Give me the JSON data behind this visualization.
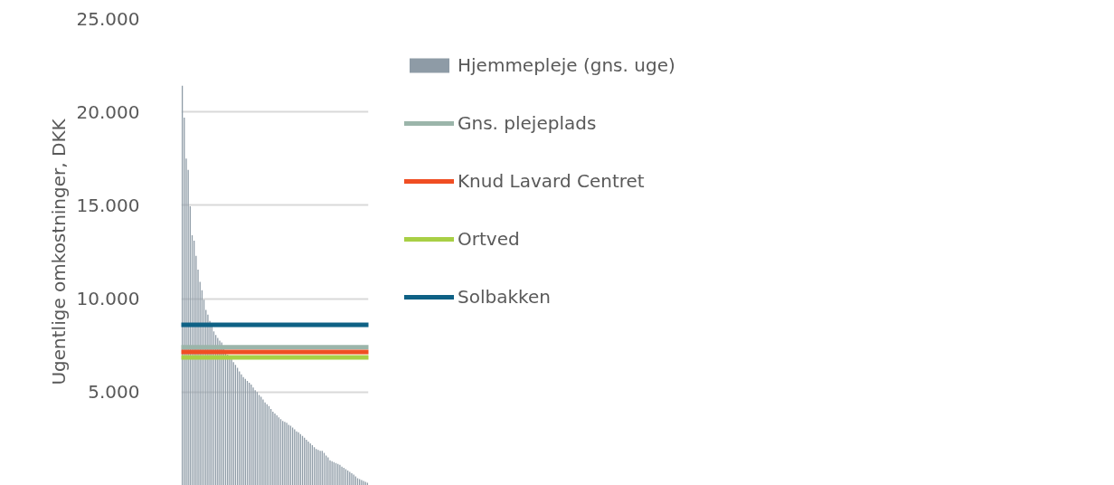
{
  "chart_data": {
    "type": "bar",
    "ylabel": "Ugentlige omkostninger, DKK",
    "categories": [
      null,
      null,
      null,
      null,
      null,
      null,
      null,
      null,
      null,
      null,
      null,
      null,
      null,
      null,
      null,
      null,
      null,
      null,
      null,
      null,
      null,
      null,
      null,
      null,
      null,
      null,
      null,
      null,
      null,
      null,
      null,
      null,
      null,
      null,
      null,
      null,
      null,
      null,
      null,
      null,
      null,
      null,
      null,
      null,
      null,
      null,
      null,
      null,
      null,
      null,
      null,
      null,
      null,
      null,
      null,
      null,
      null,
      null,
      null,
      null,
      null,
      null,
      null,
      null,
      null,
      null,
      null,
      null,
      null,
      null,
      null,
      null,
      null,
      null,
      null,
      null,
      null,
      null,
      null,
      null,
      null,
      null,
      null,
      null,
      null,
      null,
      null,
      null,
      null,
      null,
      null,
      null,
      null,
      null,
      null
    ],
    "series": [
      {
        "name": "Hjemmepleje (gns. uge)",
        "color": "#8e9ba6",
        "values": [
          21400,
          19700,
          17500,
          16900,
          14950,
          13400,
          13100,
          12300,
          11550,
          10900,
          10450,
          9950,
          9400,
          9150,
          8800,
          8550,
          8250,
          8050,
          7900,
          7750,
          7650,
          7400,
          7200,
          7000,
          6900,
          6800,
          6600,
          6450,
          6300,
          6100,
          5950,
          5800,
          5700,
          5600,
          5500,
          5400,
          5250,
          5100,
          5000,
          4850,
          4750,
          4600,
          4450,
          4350,
          4250,
          4100,
          3950,
          3850,
          3750,
          3650,
          3550,
          3450,
          3400,
          3350,
          3250,
          3200,
          3100,
          3000,
          2900,
          2850,
          2750,
          2650,
          2550,
          2450,
          2350,
          2250,
          2150,
          2050,
          1950,
          1900,
          1850,
          1850,
          1750,
          1600,
          1500,
          1350,
          1300,
          1250,
          1200,
          1150,
          1100,
          1000,
          950,
          870,
          800,
          730,
          650,
          580,
          480,
          390,
          340,
          290,
          240,
          190,
          150
        ]
      }
    ],
    "ref_lines": [
      {
        "axis": "y",
        "value": 7400,
        "label": "Gns. plejeplads",
        "color": "#9bb5aa"
      },
      {
        "axis": "y",
        "value": 7150,
        "label": "Knud Lavard Centret",
        "color": "#f04e23"
      },
      {
        "axis": "y",
        "value": 6850,
        "label": "Ortved",
        "color": "#a8cf45"
      },
      {
        "axis": "y",
        "value": 8600,
        "label": "Solbakken",
        "color": "#0e6185"
      }
    ],
    "ylim": [
      0,
      25000
    ],
    "yticks": [
      {
        "value": 5000,
        "label": "5.000"
      },
      {
        "value": 10000,
        "label": "10.000"
      },
      {
        "value": 15000,
        "label": "15.000"
      },
      {
        "value": 20000,
        "label": "20.000"
      },
      {
        "value": 25000,
        "label": "25.000"
      }
    ],
    "grid": "y",
    "legend": "right",
    "tick_labels": "y"
  }
}
